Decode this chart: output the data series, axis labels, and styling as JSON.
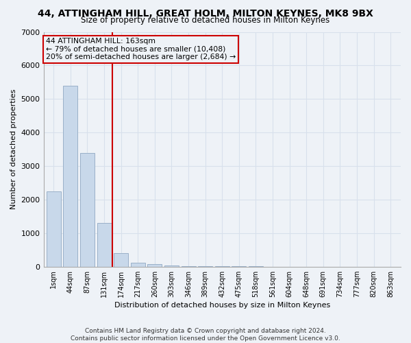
{
  "title1": "44, ATTINGHAM HILL, GREAT HOLM, MILTON KEYNES, MK8 9BX",
  "title2": "Size of property relative to detached houses in Milton Keynes",
  "xlabel": "Distribution of detached houses by size in Milton Keynes",
  "ylabel": "Number of detached properties",
  "categories": [
    "1sqm",
    "44sqm",
    "87sqm",
    "131sqm",
    "174sqm",
    "217sqm",
    "260sqm",
    "303sqm",
    "346sqm",
    "389sqm",
    "432sqm",
    "475sqm",
    "518sqm",
    "561sqm",
    "604sqm",
    "648sqm",
    "691sqm",
    "734sqm",
    "777sqm",
    "820sqm",
    "863sqm"
  ],
  "values": [
    2250,
    5400,
    3380,
    1300,
    400,
    120,
    75,
    40,
    20,
    10,
    8,
    5,
    4,
    3,
    2,
    2,
    1,
    1,
    1,
    1,
    1
  ],
  "bar_color": "#c8d8ea",
  "bar_edge_color": "#9ab0c8",
  "vline_x": 3.5,
  "vline_color": "#cc0000",
  "annotation_title": "44 ATTINGHAM HILL: 163sqm",
  "annotation_line1": "← 79% of detached houses are smaller (10,408)",
  "annotation_line2": "20% of semi-detached houses are larger (2,684) →",
  "annotation_box_color": "#cc0000",
  "ylim": [
    0,
    7000
  ],
  "yticks": [
    0,
    1000,
    2000,
    3000,
    4000,
    5000,
    6000,
    7000
  ],
  "footer1": "Contains HM Land Registry data © Crown copyright and database right 2024.",
  "footer2": "Contains public sector information licensed under the Open Government Licence v3.0.",
  "bg_color": "#eef2f7",
  "grid_color": "#d8e0ec"
}
